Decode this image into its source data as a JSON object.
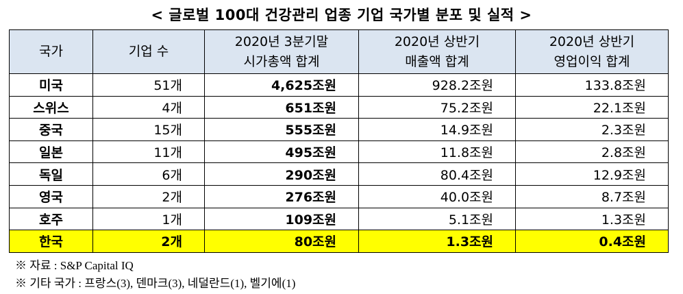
{
  "title": "< 글로벌 100대 건강관리 업종 기업 국가별 분포 및 실적 >",
  "table": {
    "header": [
      [
        "국가"
      ],
      [
        "기업 수"
      ],
      [
        "2020년 3분기말",
        "시가총액 합계"
      ],
      [
        "2020년 상반기",
        "매출액 합계"
      ],
      [
        "2020년 상반기",
        "영업이익 합계"
      ]
    ],
    "rows": [
      [
        "미국",
        "51개",
        "4,625조원",
        "928.2조원",
        "133.8조원"
      ],
      [
        "스위스",
        "4개",
        "651조원",
        "75.2조원",
        "22.1조원"
      ],
      [
        "중국",
        "15개",
        "555조원",
        "14.9조원",
        "2.3조원"
      ],
      [
        "일본",
        "11개",
        "495조원",
        "11.8조원",
        "2.8조원"
      ],
      [
        "독일",
        "6개",
        "290조원",
        "80.4조원",
        "12.9조원"
      ],
      [
        "영국",
        "2개",
        "276조원",
        "40.0조원",
        "8.7조원"
      ],
      [
        "호주",
        "1개",
        "109조원",
        "5.1조원",
        "1.3조원"
      ],
      [
        "한국",
        "2개",
        "80조원",
        "1.3조원",
        "0.4조원"
      ]
    ]
  },
  "footnotes": [
    "※ 자료 : S&P Capital IQ",
    "※ 기타 국가 : 프랑스(3), 덴마크(3), 네덜란드(1), 벨기에(1)"
  ]
}
